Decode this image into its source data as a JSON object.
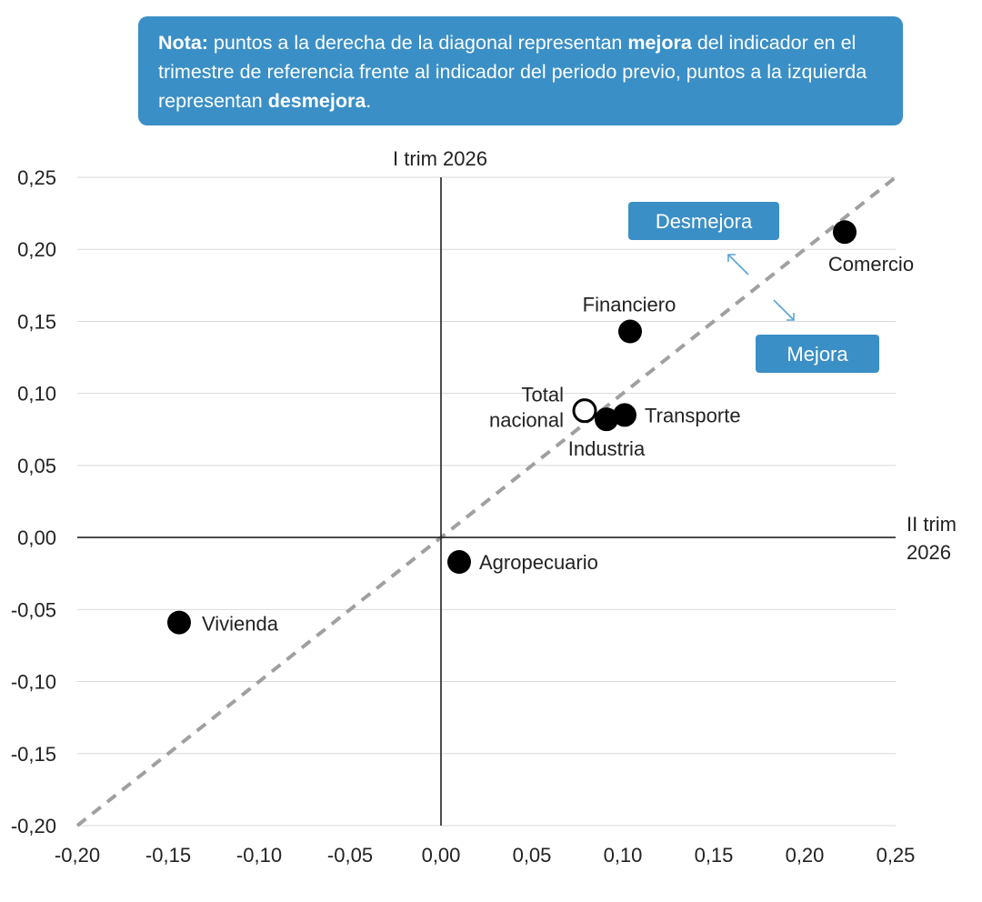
{
  "note": {
    "nota_label": "Nota:",
    "t1": " puntos a la derecha de la diagonal representan ",
    "mejora_word": "mejora",
    "t2": " del indicador en el trimestre de referencia frente al indicador del periodo previo, puntos a la izquierda representan ",
    "desmejora_word": "desmejora",
    "t3": "."
  },
  "callouts": {
    "desmejora": "Desmejora",
    "mejora": "Mejora"
  },
  "colors": {
    "accent": "#3a8fc6",
    "point": "#000000",
    "diagonal": "#a0a0a0",
    "grid": "#d9d9d9"
  },
  "chart_data": {
    "type": "scatter",
    "xlabel": [
      "II trim",
      "2026"
    ],
    "ylabel": "I trim 2026",
    "xlim": [
      -0.2,
      0.25
    ],
    "ylim": [
      -0.2,
      0.25
    ],
    "x_ticks": [
      "-0,20",
      "-0,15",
      "-0,10",
      "-0,05",
      "0,00",
      "0,05",
      "0,10",
      "0,15",
      "0,20",
      "0,25"
    ],
    "y_ticks": [
      "-0,20",
      "-0,15",
      "-0,10",
      "-0,05",
      "0,00",
      "0,05",
      "0,10",
      "0,15",
      "0,20",
      "0,25"
    ],
    "grid": "horizontal",
    "reference_line": "y = x",
    "points": [
      {
        "name": "Comercio",
        "x": 0.222,
        "y": 0.212,
        "hollow": false
      },
      {
        "name": "Financiero",
        "x": 0.104,
        "y": 0.143,
        "hollow": false
      },
      {
        "name": "Transporte",
        "x": 0.101,
        "y": 0.085,
        "hollow": false
      },
      {
        "name": "Industria",
        "x": 0.091,
        "y": 0.082,
        "hollow": false
      },
      {
        "name": "Total nacional",
        "x": 0.079,
        "y": 0.088,
        "hollow": true
      },
      {
        "name": "Agropecuario",
        "x": 0.01,
        "y": -0.017,
        "hollow": false
      },
      {
        "name": "Vivienda",
        "x": -0.144,
        "y": -0.059,
        "hollow": false
      }
    ]
  }
}
